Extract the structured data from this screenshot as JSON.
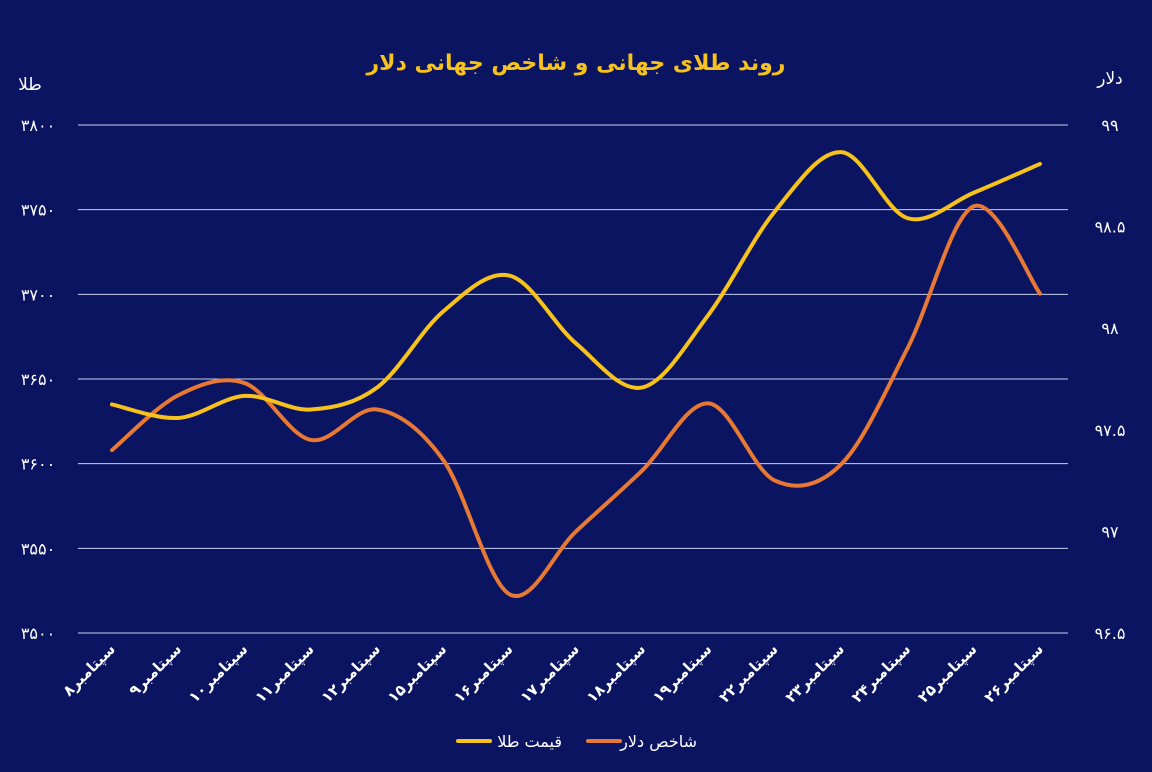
{
  "chart_data": {
    "type": "line",
    "title": "روند طلای جهانی و شاخص جهانی دلار",
    "y_left_label": "طلا",
    "y_right_label": "دلار",
    "y_left_ticks": [
      "۳۵۰۰",
      "۳۵۵۰",
      "۳۶۰۰",
      "۳۶۵۰",
      "۳۷۰۰",
      "۳۷۵۰",
      "۳۸۰۰"
    ],
    "y_right_ticks": [
      "۹۶.۵",
      "۹۷",
      "۹۷.۵",
      "۹۸",
      "۹۸.۵",
      "۹۹"
    ],
    "ylim_left": [
      3500,
      3800
    ],
    "ylim_right": [
      96.5,
      99
    ],
    "grid": true,
    "legend_position": "bottom",
    "categories": [
      "۸سپتامبر",
      "۹سپتامبر",
      "۱۰سپتامبر",
      "۱۱سپتامبر",
      "۱۲سپتامبر",
      "۱۵سپتامبر",
      "۱۶سپتامبر",
      "۱۷سپتامبر",
      "۱۸سپتامبر",
      "۱۹سپتامبر",
      "۲۲سپتامبر",
      "۲۳سپتامبر",
      "۲۴سپتامبر",
      "۲۵سپتامبر",
      "۲۶سپتامبر"
    ],
    "series": [
      {
        "name": "قیمت طلا",
        "axis": "left",
        "color": "#f7c21b",
        "values": [
          3635,
          3627,
          3640,
          3632,
          3645,
          3690,
          3711,
          3671,
          3645,
          3688,
          3749,
          3784,
          3745,
          3760,
          3777
        ]
      },
      {
        "name": "شاخص دلار",
        "axis": "right",
        "color": "#e87934",
        "values": [
          97.4,
          97.67,
          97.73,
          97.45,
          97.6,
          97.35,
          96.69,
          97.0,
          97.3,
          97.63,
          97.25,
          97.33,
          97.9,
          98.6,
          98.17
        ]
      }
    ]
  }
}
